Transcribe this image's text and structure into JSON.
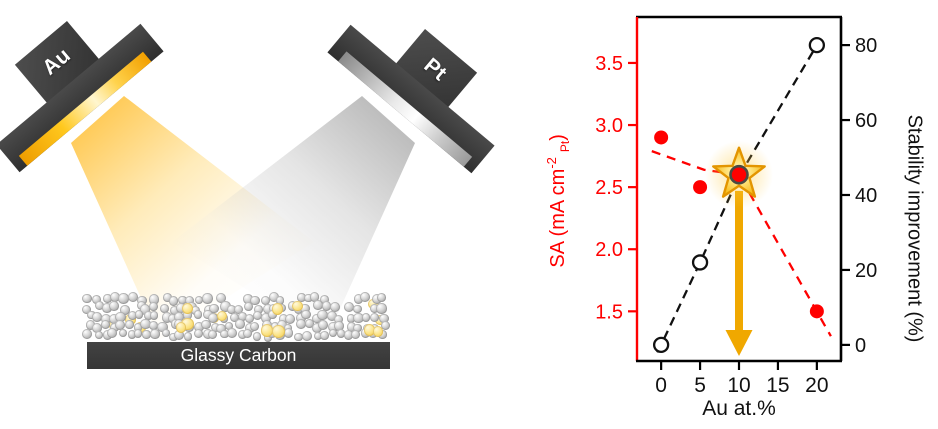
{
  "figure": {
    "left_panel": {
      "au_target_label": "Au",
      "pt_target_label": "Pt",
      "substrate_label": "Glassy Carbon"
    },
    "colors": {
      "target_dark_gray": "#3e3e3e",
      "gold_surface": "#f5a800",
      "silver_surface": "#d9d9d9",
      "particle_gray": "#b5b5b5",
      "particle_yellow": "#f7de7e"
    }
  },
  "chart_data": {
    "type": "scatter",
    "x_values": [
      0,
      5,
      10,
      20
    ],
    "series": [
      {
        "name": "SA",
        "axis": "left",
        "marker": "filled-circle",
        "color": "#ff0000",
        "line_style": "dashed",
        "values": [
          2.9,
          2.5,
          2.6,
          1.5
        ]
      },
      {
        "name": "Stability improvement",
        "axis": "right",
        "marker": "open-circle",
        "color": "#000000",
        "line_style": "dashed",
        "values": [
          0,
          22,
          45,
          80
        ]
      }
    ],
    "xlabel": "Au at.%",
    "x_ticks": [
      0,
      5,
      10,
      15,
      20
    ],
    "xlim": [
      -3.1,
      23.1
    ],
    "left_axis": {
      "label_prefix": "SA (mA cm",
      "label_sup": "-2",
      "label_sub": "Pt",
      "label_suffix": ")",
      "color": "#ff0000",
      "ticks": [
        1.5,
        2.0,
        2.5,
        3.0,
        3.5
      ],
      "range": [
        1.1,
        3.87
      ]
    },
    "right_axis": {
      "label": "Stability improvement (%)",
      "color": "#000000",
      "ticks": [
        0,
        20,
        40,
        60,
        80
      ],
      "range": [
        -4.3,
        87.5
      ]
    },
    "grid": false,
    "legend": "none",
    "annotations": {
      "star": {
        "x": 10,
        "y_left": 2.6,
        "fill": "#f7b913",
        "stroke": "#e39500"
      },
      "arrow": {
        "x": 10,
        "from_y_left": 2.47,
        "to_y_left": 1.14,
        "color": "#f0a800"
      },
      "guide_lines": {
        "sa_dashed_left_axis": [
          [
            -1.2,
            2.79
          ],
          [
            5.5,
            2.64
          ],
          [
            10,
            2.6
          ],
          [
            21.8,
            1.3
          ]
        ],
        "stability_dashed_right_axis": [
          [
            -0.5,
            -2
          ],
          [
            0,
            0
          ],
          [
            5,
            22
          ],
          [
            10,
            45
          ],
          [
            20,
            80
          ],
          [
            20.6,
            82
          ]
        ]
      }
    }
  }
}
